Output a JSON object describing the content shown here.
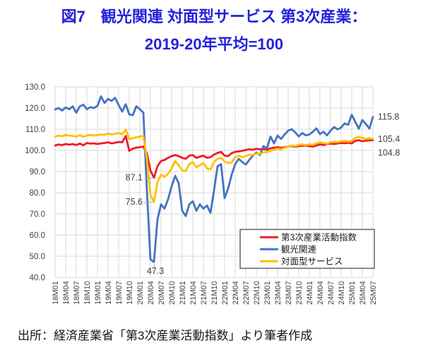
{
  "title": {
    "line1": "図7　観光関連 対面型サービス 第3次産業：",
    "line2": "2019-20年平均=100"
  },
  "source": "出所：経済産業省「第3次産業活動指数」より筆者作成",
  "chart_data": {
    "type": "line",
    "x_start": "18M01",
    "x_end": "25M07",
    "months_total": 91,
    "x_tick_labels": [
      "18M01",
      "18M04",
      "18M07",
      "18M10",
      "19M01",
      "19M04",
      "19M07",
      "19M10",
      "20M01",
      "20M04",
      "20M07",
      "20M10",
      "21M01",
      "21M04",
      "21M07",
      "21M10",
      "22M01",
      "22M04",
      "22M07",
      "22M10",
      "23M01",
      "23M04",
      "23M07",
      "23M10",
      "24M01",
      "24M04",
      "24M07",
      "24M10",
      "25M01",
      "25M04",
      "25M07"
    ],
    "x_tick_every_months": 3,
    "ylim": [
      40,
      130
    ],
    "y_tick_step": 10,
    "grid": true,
    "legend_position": "inside-bottom-right",
    "colors": {
      "grid": "#D9D9D9",
      "axis": "#BFBFBF",
      "tick_text": "#404040",
      "annotation_text": "#404040",
      "leader_line": "#A6A6A6",
      "legend_border": "#595959",
      "title_blue": "#2222DD"
    },
    "series": [
      {
        "name": "第3次産業活動指数",
        "color": "#EE1C25",
        "values": [
          102.3,
          102.8,
          102.5,
          103.0,
          102.7,
          103.0,
          102.5,
          103.2,
          102.4,
          103.5,
          103.2,
          103.3,
          103.0,
          103.3,
          103.5,
          103.8,
          103.3,
          103.6,
          104.0,
          103.8,
          106.8,
          99.8,
          100.8,
          101.3,
          101.5,
          101.8,
          98.5,
          90.5,
          87.1,
          92.5,
          95.0,
          95.5,
          96.5,
          97.3,
          97.8,
          97.3,
          96.5,
          96.0,
          97.5,
          97.8,
          96.5,
          97.0,
          97.5,
          96.5,
          96.8,
          98.0,
          98.8,
          99.3,
          97.5,
          97.3,
          98.7,
          99.3,
          99.5,
          99.8,
          100.2,
          100.5,
          100.3,
          100.8,
          100.5,
          100.6,
          100.3,
          101.0,
          101.3,
          101.5,
          101.2,
          101.5,
          101.8,
          102.0,
          101.7,
          102.0,
          102.2,
          102.3,
          102.0,
          101.8,
          102.3,
          102.8,
          102.5,
          103.0,
          103.2,
          103.0,
          103.3,
          103.5,
          103.4,
          103.6,
          103.3,
          104.5,
          104.8,
          104.3,
          104.6,
          104.7,
          104.8
        ]
      },
      {
        "name": "観光関連",
        "color": "#4472C4",
        "values": [
          119.3,
          120.0,
          118.8,
          120.3,
          119.4,
          120.8,
          117.8,
          120.8,
          121.6,
          119.4,
          120.4,
          120.0,
          121.0,
          125.5,
          122.4,
          124.3,
          123.4,
          124.8,
          121.4,
          118.3,
          121.8,
          117.0,
          116.6,
          120.8,
          119.5,
          117.8,
          81.0,
          48.5,
          47.3,
          67.5,
          74.5,
          72.5,
          77.0,
          83.0,
          88.0,
          84.5,
          71.5,
          69.0,
          74.5,
          76.0,
          71.5,
          74.5,
          72.5,
          74.0,
          70.5,
          81.0,
          92.5,
          93.5,
          77.5,
          82.0,
          88.5,
          93.5,
          96.0,
          94.5,
          93.3,
          95.5,
          97.5,
          99.0,
          97.8,
          102.0,
          101.0,
          106.5,
          103.3,
          107.0,
          105.4,
          107.5,
          109.3,
          110.0,
          108.5,
          106.6,
          108.2,
          107.1,
          107.5,
          108.8,
          110.4,
          107.7,
          108.8,
          107.1,
          109.3,
          111.0,
          109.9,
          110.8,
          112.7,
          112.1,
          116.8,
          113.5,
          110.2,
          114.3,
          112.5,
          110.3,
          115.8
        ]
      },
      {
        "name": "対面型サービス",
        "color": "#FFC000",
        "values": [
          106.5,
          107.0,
          106.7,
          107.3,
          107.0,
          106.8,
          106.5,
          107.2,
          106.4,
          107.0,
          107.3,
          107.0,
          107.2,
          107.5,
          107.3,
          108.0,
          107.5,
          107.8,
          108.3,
          107.6,
          109.8,
          105.3,
          105.8,
          106.2,
          106.5,
          106.9,
          96.0,
          79.0,
          75.6,
          85.0,
          88.5,
          87.5,
          89.0,
          91.5,
          95.0,
          93.0,
          90.5,
          90.2,
          93.5,
          94.5,
          92.0,
          93.0,
          94.0,
          91.5,
          91.0,
          94.5,
          96.0,
          96.5,
          94.8,
          94.0,
          94.3,
          96.8,
          97.5,
          96.8,
          97.3,
          98.0,
          97.8,
          98.5,
          98.3,
          99.0,
          99.2,
          99.8,
          100.3,
          100.8,
          100.5,
          101.2,
          101.8,
          102.3,
          102.0,
          102.6,
          102.8,
          102.5,
          102.8,
          102.6,
          103.3,
          103.8,
          103.5,
          103.2,
          103.8,
          104.1,
          103.9,
          104.3,
          104.5,
          104.2,
          104.5,
          105.9,
          106.3,
          105.9,
          105.4,
          105.8,
          105.4
        ]
      }
    ],
    "annotations": [
      {
        "text": "87.1",
        "month_index": 28,
        "value": 87.1,
        "placement": "left"
      },
      {
        "text": "75.6",
        "month_index": 28,
        "value": 75.6,
        "placement": "left"
      },
      {
        "text": "47.3",
        "month_index": 28,
        "value": 47.3,
        "placement": "below"
      },
      {
        "text": "115.8",
        "month_index": 90,
        "value": 115.8,
        "placement": "right",
        "dy": 0
      },
      {
        "text": "105.4",
        "month_index": 90,
        "value": 105.4,
        "placement": "right",
        "dy": 0
      },
      {
        "text": "104.8",
        "month_index": 90,
        "value": 104.8,
        "placement": "right",
        "dy": 18
      }
    ]
  }
}
